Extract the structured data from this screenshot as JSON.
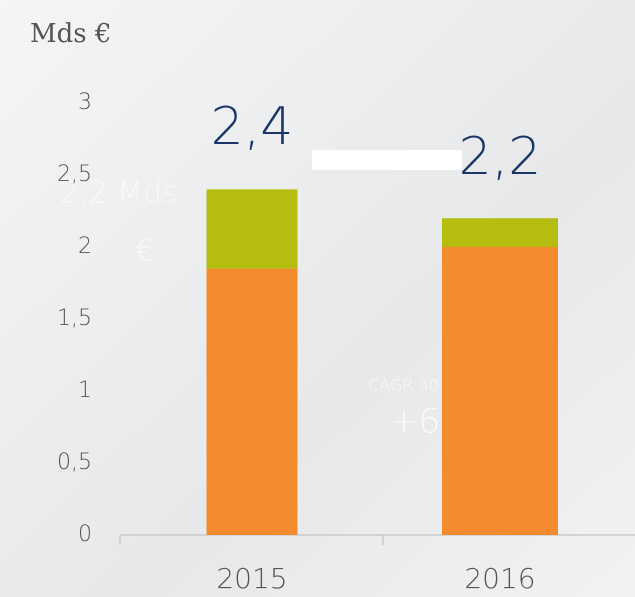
{
  "chart_data": {
    "type": "stacked_bar",
    "y_label": "Mds €",
    "categories": [
      "2015",
      "2016"
    ],
    "series": [
      {
        "color": "#f58b2f",
        "values": [
          1.85,
          2.0
        ]
      },
      {
        "color": "#b5bd10",
        "values": [
          0.55,
          0.2
        ]
      }
    ],
    "total_labels": [
      "2,4",
      "2,2"
    ],
    "ylim": [
      0,
      3
    ],
    "yticks": [
      0,
      {
        "value": 0.5,
        "label": "0,5"
      },
      1,
      {
        "value": 1.5,
        "label": "1,5"
      },
      2,
      {
        "value": 2.5,
        "label": "2,5"
      },
      3
    ],
    "annotations": [
      "2,2 Mds",
      "€",
      "CAGR 30 a",
      "+6%"
    ]
  }
}
